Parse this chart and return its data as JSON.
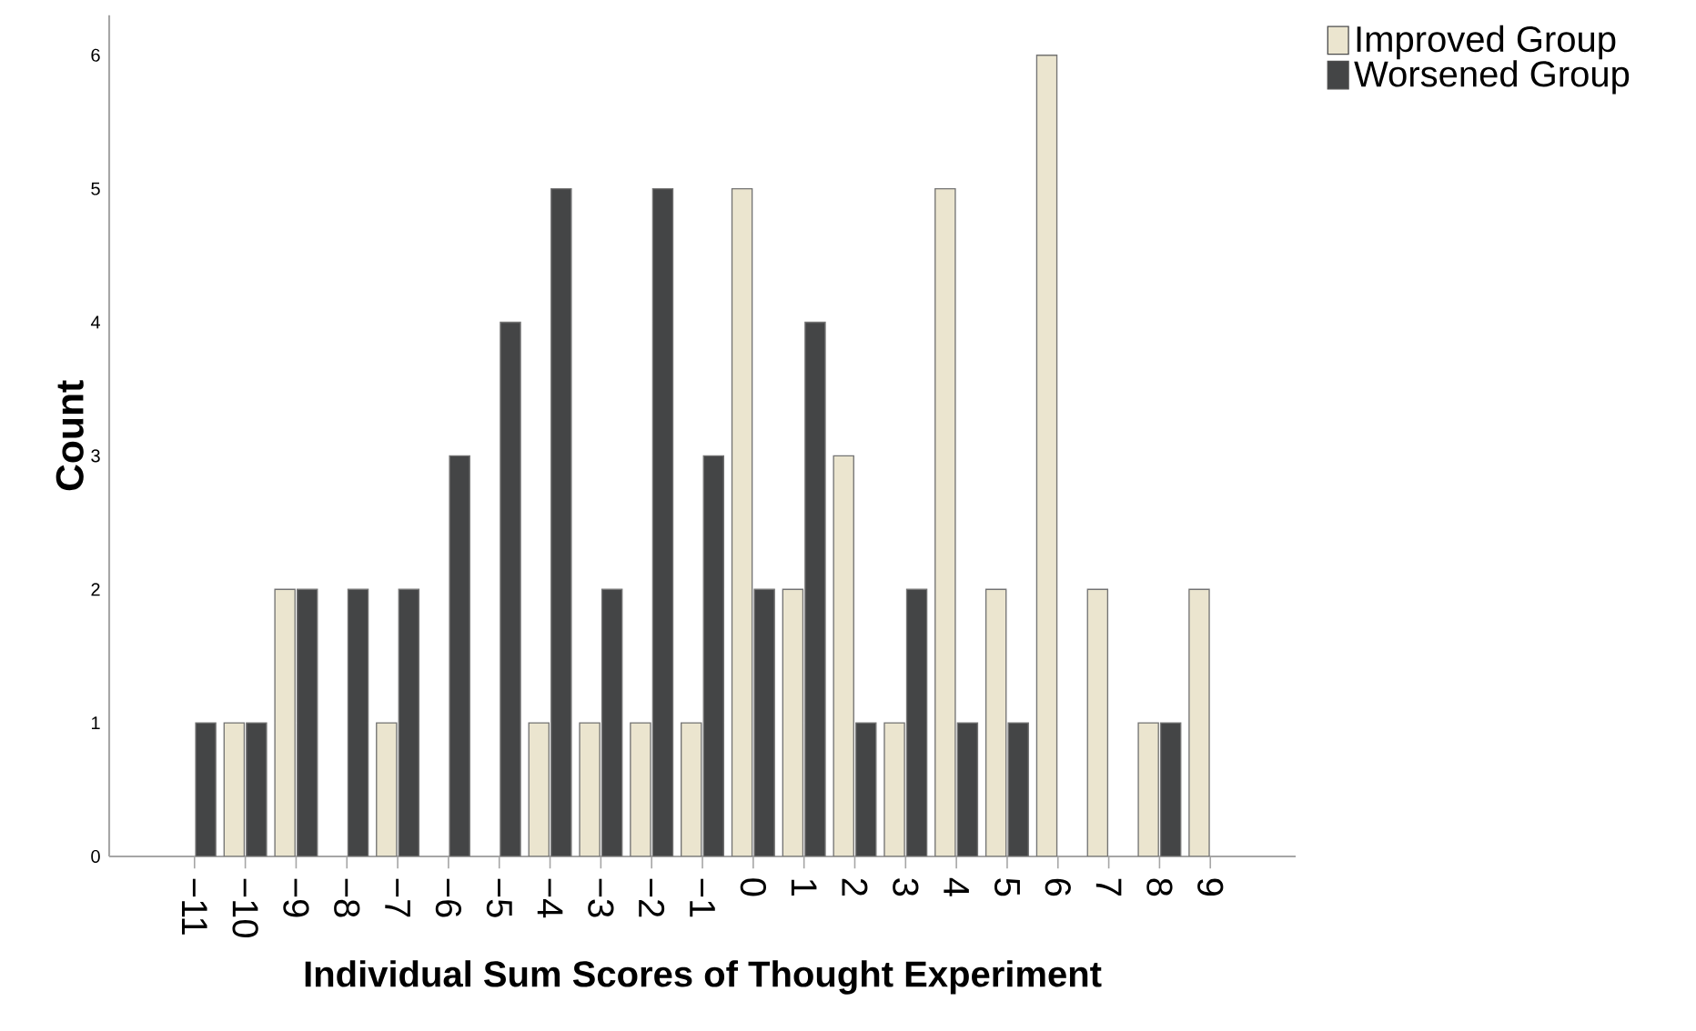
{
  "chart_data": {
    "type": "bar",
    "categories": [
      "−11",
      "−10",
      "−9",
      "−8",
      "−7",
      "−6",
      "−5",
      "−4",
      "−3",
      "−2",
      "−1",
      "0",
      "1",
      "2",
      "3",
      "4",
      "5",
      "6",
      "7",
      "8",
      "9"
    ],
    "series": [
      {
        "name": "Improved Group",
        "color": "#ebe5cf",
        "values": [
          null,
          1,
          2,
          null,
          1,
          null,
          null,
          1,
          1,
          1,
          1,
          5,
          2,
          3,
          1,
          5,
          2,
          6,
          2,
          1,
          2
        ]
      },
      {
        "name": "Worsened Group",
        "color": "#444546",
        "values": [
          1,
          1,
          2,
          2,
          2,
          3,
          4,
          5,
          2,
          5,
          3,
          2,
          4,
          1,
          2,
          1,
          1,
          null,
          null,
          1,
          null
        ]
      }
    ],
    "xlabel": "Individual Sum Scores of Thought Experiment",
    "ylabel": "Count",
    "ylim": [
      0,
      6.3
    ],
    "yticks": [
      0,
      1,
      2,
      3,
      4,
      5,
      6
    ],
    "legend": "top right"
  }
}
